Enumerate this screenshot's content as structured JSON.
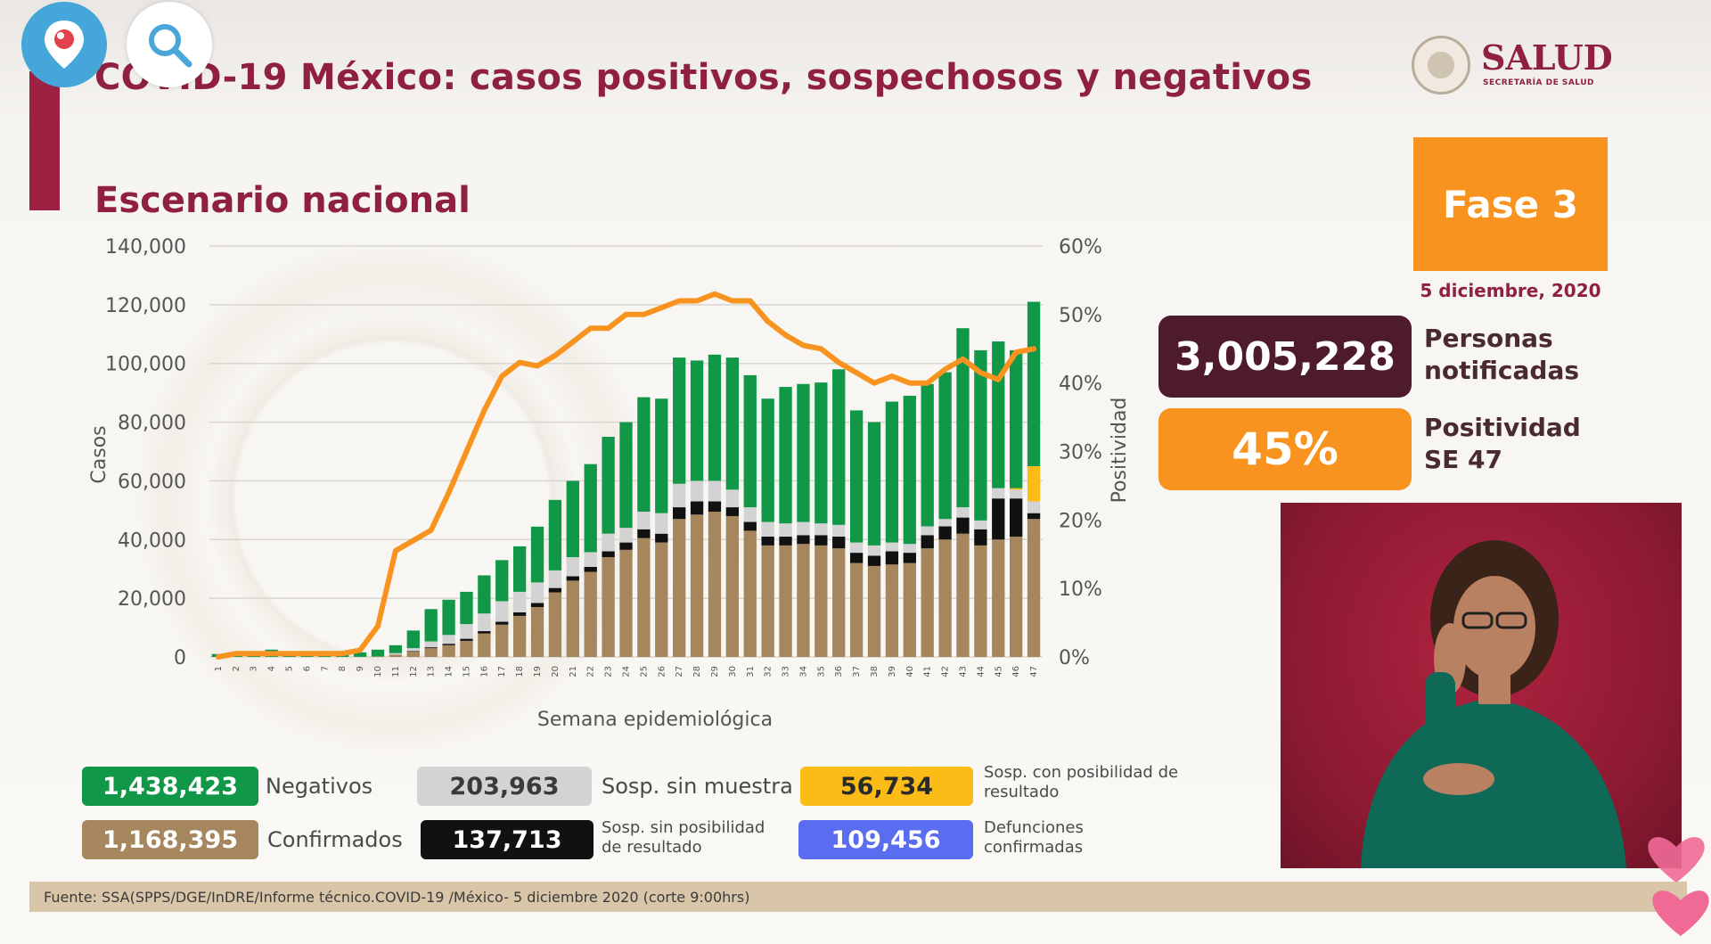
{
  "header": {
    "title": "COVID-19 México: casos positivos, sospechosos y negativos",
    "subtitle": "Escenario nacional",
    "logo_text": "SALUD",
    "logo_sub": "SECRETARÍA DE SALUD"
  },
  "phase": {
    "label": "Fase 3",
    "date": "5 diciembre, 2020"
  },
  "stats": {
    "notified_value": "3,005,228",
    "notified_label": "Personas notificadas",
    "positivity_value": "45%",
    "positivity_label": "Positividad SE 47"
  },
  "legend": {
    "negativos_value": "1,438,423",
    "negativos_label": "Negativos",
    "confirmados_value": "1,168,395",
    "confirmados_label": "Confirmados",
    "sosp_sin_muestra_value": "203,963",
    "sosp_sin_muestra_label": "Sosp. sin muestra",
    "sosp_sin_posibilidad_value": "137,713",
    "sosp_sin_posibilidad_label": "Sosp. sin posibilidad de resultado",
    "sosp_con_posibilidad_value": "56,734",
    "sosp_con_posibilidad_label": "Sosp. con posibilidad de resultado",
    "defunciones_value": "109,456",
    "defunciones_label": "Defunciones confirmadas"
  },
  "footer": {
    "source": "Fuente: SSA(SPPS/DGE/InDRE/Informe técnico.COVID-19 /México- 5 diciembre 2020 (corte 9:00hrs)"
  },
  "colors": {
    "confirmados": "#a6865c",
    "sosp_sin_posibilidad": "#111111",
    "sosp_sin_muestra": "#d3d3d3",
    "sosp_con_posibilidad": "#fbbc18",
    "negativos": "#109848",
    "positividad": "#f7931e",
    "defunciones": "#5a6cf0",
    "brand": "#8f2040"
  },
  "icons": {
    "periscope": "periscope-pin-icon",
    "search": "search-icon"
  },
  "chart_data": {
    "type": "bar",
    "stacked": true,
    "xlabel": "Semana epidemiológica",
    "ylabel": "Casos",
    "y2label": "Positividad",
    "ylim": [
      0,
      140000
    ],
    "y2lim": [
      0,
      60
    ],
    "yticks": [
      "0",
      "20,000",
      "40,000",
      "60,000",
      "80,000",
      "100,000",
      "120,000",
      "140,000"
    ],
    "y2ticks": [
      "0%",
      "10%",
      "20%",
      "30%",
      "40%",
      "50%",
      "60%"
    ],
    "grid": true,
    "categories": [
      "1",
      "2",
      "3",
      "4",
      "5",
      "6",
      "7",
      "8",
      "9",
      "10",
      "11",
      "12",
      "13",
      "14",
      "15",
      "16",
      "17",
      "18",
      "19",
      "20",
      "21",
      "22",
      "23",
      "24",
      "25",
      "26",
      "27",
      "28",
      "29",
      "30",
      "31",
      "32",
      "33",
      "34",
      "35",
      "36",
      "37",
      "38",
      "39",
      "40",
      "41",
      "42",
      "43",
      "44",
      "45",
      "46",
      "47"
    ],
    "series": [
      {
        "name": "Confirmados",
        "values": [
          0,
          0,
          0,
          0,
          0,
          0,
          0,
          0,
          50,
          200,
          800,
          1800,
          3000,
          4000,
          5500,
          8000,
          11000,
          14000,
          17000,
          22000,
          26000,
          29000,
          34000,
          36500,
          40500,
          39000,
          47000,
          48500,
          49500,
          48000,
          43000,
          38000,
          38000,
          38500,
          38000,
          37000,
          32000,
          31000,
          31500,
          32000,
          37000,
          40000,
          42000,
          38000,
          40000,
          41000,
          47000
        ]
      },
      {
        "name": "Sosp. sin posibilidad de resultado",
        "values": [
          0,
          0,
          0,
          0,
          0,
          0,
          0,
          0,
          0,
          0,
          0,
          200,
          300,
          500,
          700,
          800,
          1000,
          1200,
          1400,
          1500,
          1500,
          1700,
          2000,
          2500,
          3000,
          3000,
          4000,
          4500,
          3500,
          3000,
          3000,
          3000,
          3000,
          3000,
          3500,
          4000,
          3500,
          3500,
          4500,
          3500,
          4500,
          4500,
          5500,
          5500,
          14000,
          13000,
          2000
        ]
      },
      {
        "name": "Sosp. sin muestra",
        "values": [
          0,
          0,
          0,
          0,
          0,
          0,
          0,
          0,
          0,
          0,
          500,
          1000,
          2000,
          3000,
          5000,
          6000,
          7000,
          7000,
          7000,
          6000,
          6500,
          5000,
          6000,
          5000,
          6000,
          7000,
          8000,
          7000,
          7000,
          6000,
          5000,
          5000,
          4500,
          4500,
          4000,
          4000,
          3500,
          3500,
          3000,
          3000,
          3000,
          2500,
          3500,
          3000,
          3500,
          3000,
          4000
        ]
      },
      {
        "name": "Sosp. con posibilidad de resultado",
        "values": [
          0,
          0,
          0,
          0,
          0,
          0,
          0,
          0,
          0,
          0,
          0,
          0,
          0,
          0,
          0,
          0,
          0,
          0,
          0,
          0,
          0,
          0,
          0,
          0,
          0,
          0,
          0,
          0,
          0,
          0,
          0,
          0,
          0,
          0,
          0,
          0,
          0,
          0,
          0,
          0,
          0,
          0,
          0,
          0,
          0,
          500,
          12000
        ]
      },
      {
        "name": "Negativos",
        "values": [
          1000,
          1700,
          2000,
          2500,
          2000,
          2000,
          2000,
          2000,
          1500,
          2300,
          2700,
          6000,
          11000,
          12000,
          11000,
          13000,
          14000,
          15500,
          19000,
          24000,
          26000,
          30000,
          33000,
          36000,
          39000,
          39000,
          43000,
          41000,
          43000,
          45000,
          45000,
          42000,
          46500,
          47000,
          48000,
          53000,
          45000,
          42000,
          48000,
          50500,
          48500,
          50000,
          61000,
          58000,
          50000,
          47000,
          56000
        ]
      }
    ],
    "line": {
      "name": "Positividad",
      "axis": "right",
      "values": [
        0,
        0.5,
        0.5,
        0.5,
        0.5,
        0.5,
        0.5,
        0.5,
        1,
        4.5,
        15.5,
        17,
        18.5,
        24,
        30,
        36,
        41,
        43,
        42.5,
        44,
        46,
        48,
        48,
        50,
        50,
        51,
        52,
        52,
        53,
        52,
        52,
        49,
        47,
        45.5,
        45,
        43,
        41.5,
        40,
        41,
        40,
        40,
        42,
        43.5,
        41.5,
        40.5,
        44.5,
        45
      ]
    }
  }
}
